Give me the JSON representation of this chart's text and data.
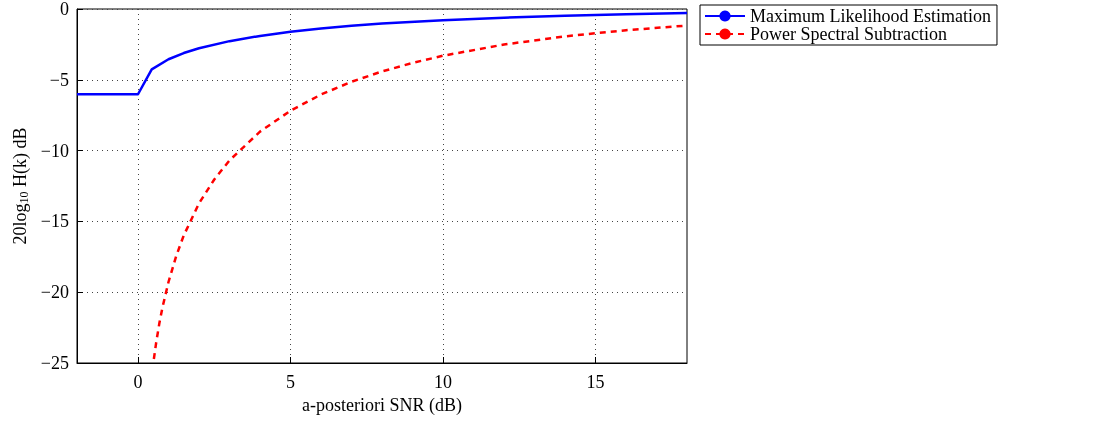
{
  "chart_data": {
    "type": "line",
    "xlabel": "a-posteriori SNR (dB)",
    "ylabel": "20log$_{10}$ H(k) dB",
    "xlim": [
      -2,
      18
    ],
    "xticks": [
      0,
      5,
      10,
      15
    ],
    "ylim": [
      -25,
      0
    ],
    "yticks": [
      -25,
      -20,
      -15,
      -10,
      -5,
      0
    ],
    "grid": true,
    "legend": "top right",
    "marker": "none",
    "series": [
      {
        "name": "Maximum Likelihood Estimation",
        "color": "#0000ff",
        "line_style": "solid",
        "x": [
          -2,
          0,
          0.45,
          1,
          1.5,
          2,
          3,
          4,
          5,
          6,
          7,
          8,
          10,
          12,
          14,
          16,
          18
        ],
        "values": [
          -6.02,
          -6.02,
          -4.26,
          -3.55,
          -3.11,
          -2.77,
          -2.27,
          -1.9,
          -1.61,
          -1.38,
          -1.19,
          -1.03,
          -0.79,
          -0.61,
          -0.47,
          -0.37,
          -0.29
        ]
      },
      {
        "name": "Power Spectral Subtraction",
        "color": "#ff0000",
        "line_style": "dashed",
        "x": [
          0.52,
          0.6,
          0.7,
          0.8,
          1,
          1.25,
          1.5,
          2,
          2.5,
          3,
          4,
          5,
          6,
          7,
          8,
          9,
          10,
          12,
          14,
          16,
          18
        ],
        "values": [
          -24.72,
          -23.5,
          -22.2,
          -21.1,
          -19.28,
          -17.46,
          -15.99,
          -13.73,
          -12.04,
          -10.69,
          -8.66,
          -7.18,
          -6.04,
          -5.14,
          -4.41,
          -3.81,
          -3.3,
          -2.51,
          -1.93,
          -1.5,
          -1.17
        ]
      }
    ]
  }
}
